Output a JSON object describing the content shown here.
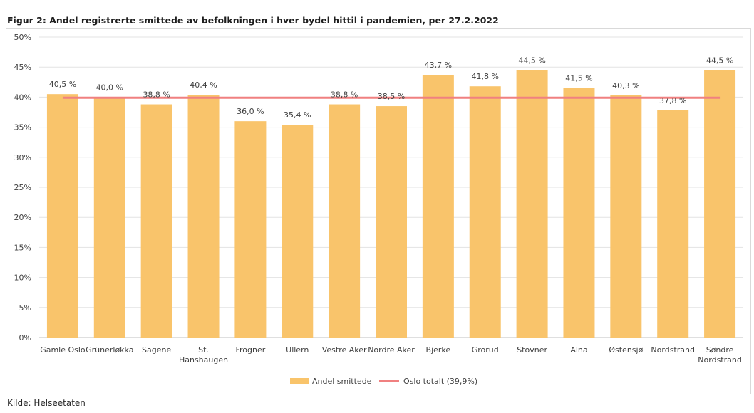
{
  "title": "Figur 2: Andel registrerte smittede av befolkningen i hver bydel hittil i pandemien, per 27.2.2022",
  "source": "Kilde: Helseetaten",
  "chart_data": {
    "type": "bar",
    "title": "Figur 2: Andel registrerte smittede av befolkningen i hver bydel hittil i pandemien, per 27.2.2022",
    "xlabel": "",
    "ylabel": "",
    "ylim": [
      0,
      50
    ],
    "yticks": [
      "0%",
      "5%",
      "10%",
      "15%",
      "20%",
      "25%",
      "30%",
      "35%",
      "40%",
      "45%",
      "50%"
    ],
    "grid": true,
    "legend_position": "bottom",
    "categories": [
      "Gamle Oslo",
      "Grünerløkka",
      "Sagene",
      "St. Hanshaugen",
      "Frogner",
      "Ullern",
      "Vestre Aker",
      "Nordre Aker",
      "Bjerke",
      "Grorud",
      "Stovner",
      "Alna",
      "Østensjø",
      "Nordstrand",
      "Søndre Nordstrand"
    ],
    "category_lines": [
      [
        "Gamle Oslo"
      ],
      [
        "Grünerløkka"
      ],
      [
        "Sagene"
      ],
      [
        "St.",
        "Hanshaugen"
      ],
      [
        "Frogner"
      ],
      [
        "Ullern"
      ],
      [
        "Vestre Aker"
      ],
      [
        "Nordre Aker"
      ],
      [
        "Bjerke"
      ],
      [
        "Grorud"
      ],
      [
        "Stovner"
      ],
      [
        "Alna"
      ],
      [
        "Østensjø"
      ],
      [
        "Nordstrand"
      ],
      [
        "Søndre",
        "Nordstrand"
      ]
    ],
    "series": [
      {
        "name": "Andel smittede",
        "type": "bar",
        "color": "#f9c46b",
        "values": [
          40.5,
          40.0,
          38.8,
          40.4,
          36.0,
          35.4,
          38.8,
          38.5,
          43.7,
          41.8,
          44.5,
          41.5,
          40.3,
          37.8,
          44.5
        ],
        "labels": [
          "40,5 %",
          "40,0 %",
          "38,8 %",
          "40,4 %",
          "36,0 %",
          "35,4 %",
          "38,8 %",
          "38,5 %",
          "43,7 %",
          "41,8 %",
          "44,5 %",
          "41,5 %",
          "40,3 %",
          "37,8 %",
          "44,5 %"
        ]
      },
      {
        "name": "Oslo totalt (39,9%)",
        "type": "line",
        "color": "#f08080",
        "value": 39.9
      }
    ]
  }
}
